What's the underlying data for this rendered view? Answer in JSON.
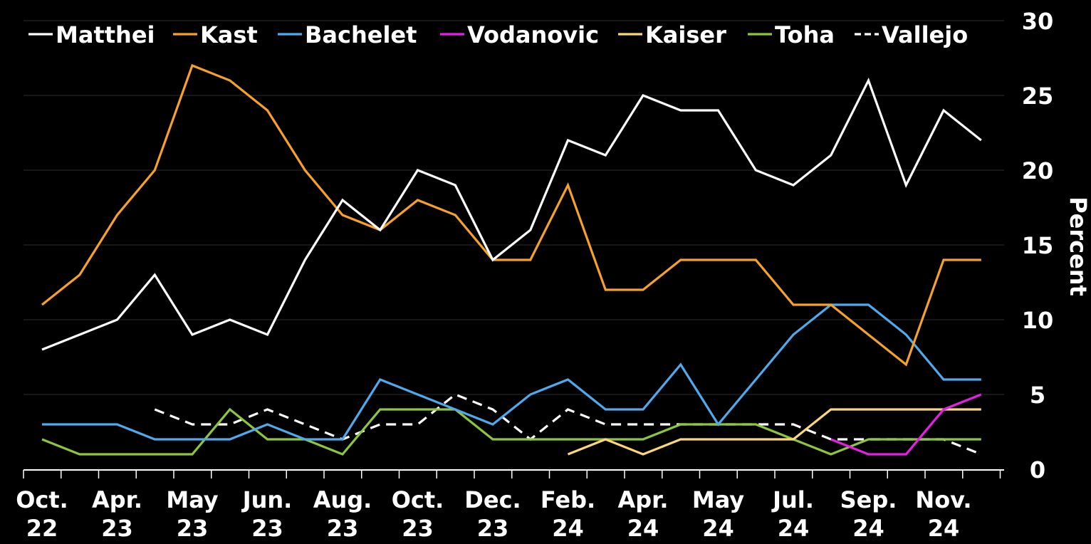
{
  "chart_data": {
    "type": "line",
    "title": "",
    "ylabel": "Percent",
    "ylim": [
      0,
      30
    ],
    "yticks": [
      "0",
      "5",
      "10",
      "15",
      "20",
      "25",
      "30"
    ],
    "grid": true,
    "legend_position": "top",
    "x_tick_labels": [
      [
        "Oct.",
        "22"
      ],
      [
        "Apr.",
        "23"
      ],
      [
        "May",
        "23"
      ],
      [
        "Jun.",
        "23"
      ],
      [
        "Aug.",
        "23"
      ],
      [
        "Oct.",
        "23"
      ],
      [
        "Dec.",
        "23"
      ],
      [
        "Feb.",
        "24"
      ],
      [
        "Apr.",
        "24"
      ],
      [
        "May",
        "24"
      ],
      [
        "Jul.",
        "24"
      ],
      [
        "Sep.",
        "24"
      ],
      [
        "Nov.",
        "24"
      ]
    ],
    "series": [
      {
        "name": "Matthei",
        "color": "#ffffff",
        "dashed": false,
        "values": [
          8,
          9,
          10,
          13,
          9,
          10,
          9,
          14,
          18,
          16,
          20,
          19,
          14,
          16,
          22,
          21,
          25,
          24,
          24,
          20,
          19,
          21,
          26,
          19,
          24,
          22
        ]
      },
      {
        "name": "Kast",
        "color": "#f5a12a",
        "dashed": false,
        "values": [
          11,
          13,
          17,
          20,
          27,
          26,
          24,
          20,
          17,
          16,
          18,
          17,
          14,
          14,
          19,
          12,
          12,
          14,
          14,
          14,
          11,
          11,
          9,
          7,
          14,
          14
        ]
      },
      {
        "name": "Bachelet",
        "color": "#4fa9ec",
        "dashed": false,
        "values": [
          3,
          3,
          3,
          2,
          2,
          2,
          3,
          2,
          2,
          6,
          5,
          4,
          3,
          5,
          6,
          4,
          4,
          7,
          3,
          6,
          9,
          11,
          11,
          9,
          6,
          6
        ]
      },
      {
        "name": "Vodanovic",
        "color": "#e61ee6",
        "dashed": false,
        "values": [
          null,
          null,
          null,
          null,
          null,
          null,
          null,
          null,
          null,
          null,
          null,
          null,
          null,
          null,
          null,
          null,
          null,
          null,
          null,
          null,
          null,
          2,
          1,
          1,
          4,
          5
        ]
      },
      {
        "name": "Kaiser",
        "color": "#fbd77a",
        "dashed": false,
        "values": [
          null,
          null,
          null,
          null,
          null,
          null,
          null,
          null,
          null,
          null,
          null,
          null,
          null,
          null,
          1,
          2,
          1,
          2,
          2,
          2,
          2,
          4,
          4,
          4,
          4,
          4
        ]
      },
      {
        "name": "Toha",
        "color": "#8cc63f",
        "dashed": false,
        "values": [
          2,
          1,
          1,
          1,
          1,
          4,
          2,
          2,
          1,
          4,
          4,
          4,
          2,
          2,
          2,
          2,
          2,
          3,
          3,
          3,
          2,
          1,
          2,
          2,
          2,
          2
        ]
      },
      {
        "name": "Vallejo",
        "color": "#ffffff",
        "dashed": true,
        "values": [
          null,
          null,
          null,
          4,
          3,
          3,
          4,
          3,
          2,
          3,
          3,
          5,
          4,
          2,
          4,
          3,
          3,
          3,
          3,
          3,
          3,
          2,
          2,
          2,
          2,
          1
        ]
      }
    ]
  }
}
